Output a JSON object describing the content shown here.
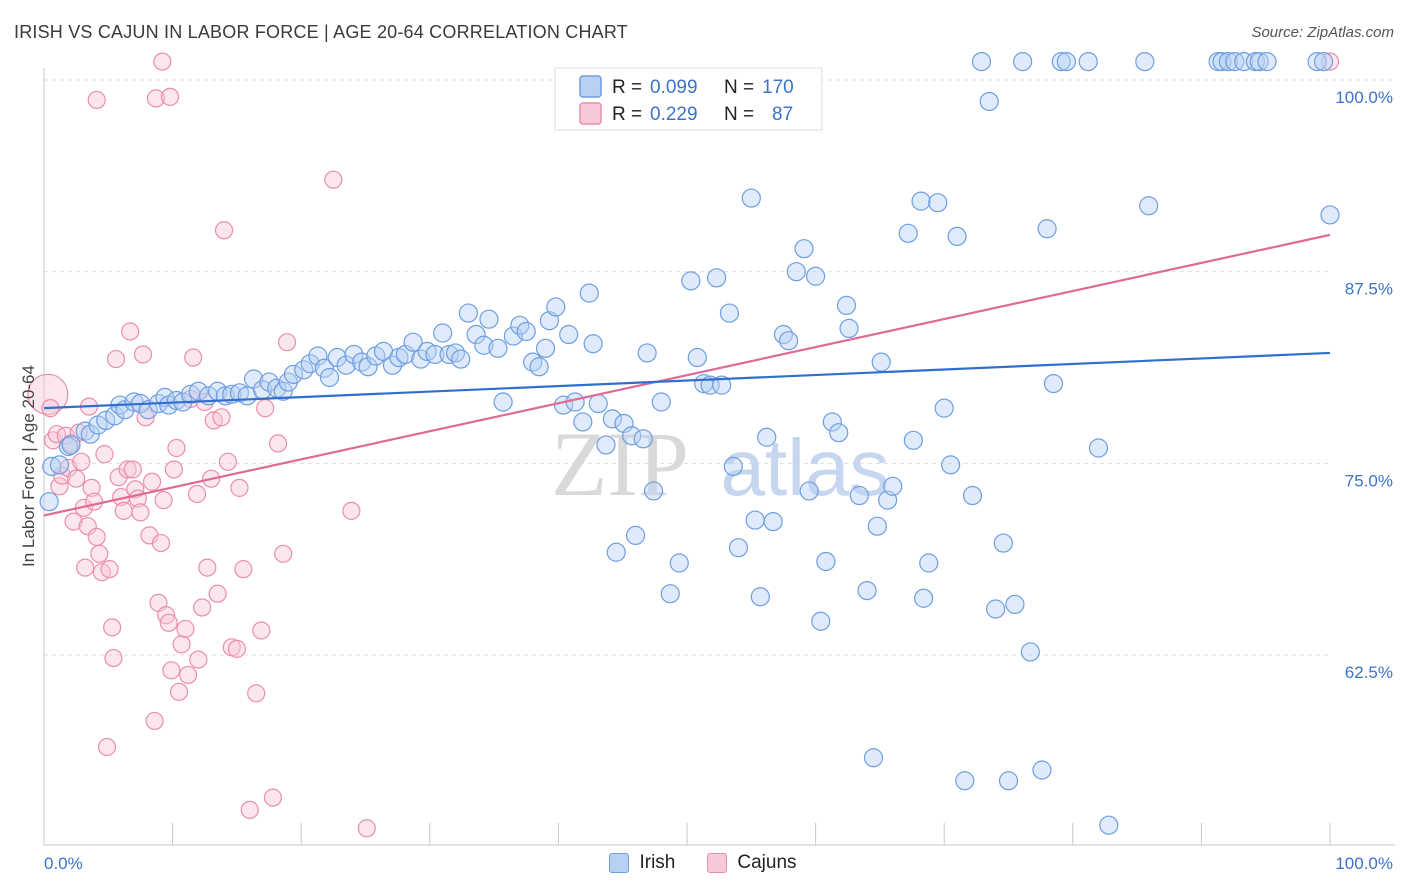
{
  "header": {
    "title": "IRISH VS CAJUN IN LABOR FORCE | AGE 20-64 CORRELATION CHART",
    "source": "Source: ZipAtlas.com"
  },
  "watermark": {
    "zip": "ZIP",
    "atlas": "atlas"
  },
  "colors": {
    "irish_fill": "#b8d1f3",
    "irish_stroke": "#6f9ee0",
    "irish_line": "#2f6fce",
    "cajun_fill": "#f7c8d6",
    "cajun_stroke": "#ea8fab",
    "cajun_line": "#e06a96",
    "tick": "#3b73c9",
    "grid": "#dedede"
  },
  "legend": {
    "irish": {
      "r_label": "R =",
      "r_value": "0.099",
      "n_label": "N =",
      "n_value": "170"
    },
    "cajun": {
      "r_label": "R =",
      "r_value": "0.229",
      "n_label": "N =",
      "n_value": "87"
    }
  },
  "bottom_legend": {
    "irish": "Irish",
    "cajun": "Cajuns"
  },
  "chart_data": {
    "type": "scatter",
    "title": "IRISH VS CAJUN IN LABOR FORCE | AGE 20-64 CORRELATION CHART",
    "xlabel": "",
    "ylabel": "In Labor Force | Age 20-64",
    "xlim": [
      0,
      100
    ],
    "ylim": [
      50.0,
      101.5
    ],
    "x_tick_labels": [
      "0.0%",
      "100.0%"
    ],
    "y_ticks": [
      62.5,
      75.0,
      87.5,
      100.0
    ],
    "y_tick_labels": [
      "62.5%",
      "75.0%",
      "87.5%",
      "100.0%"
    ],
    "grid": true,
    "series": [
      {
        "name": "Irish",
        "r": 0.099,
        "n": 170,
        "trend": {
          "x": [
            0,
            100
          ],
          "y": [
            78.6,
            82.2
          ]
        },
        "points": [
          [
            0.4,
            72.5
          ],
          [
            0.6,
            74.8
          ],
          [
            1.2,
            74.9
          ],
          [
            1.9,
            76.1
          ],
          [
            2.1,
            76.2
          ],
          [
            3.2,
            77.1
          ],
          [
            3.6,
            76.9
          ],
          [
            4.2,
            77.5
          ],
          [
            4.8,
            77.8
          ],
          [
            5.5,
            78.1
          ],
          [
            5.9,
            78.8
          ],
          [
            6.3,
            78.5
          ],
          [
            7.0,
            79.0
          ],
          [
            7.5,
            78.9
          ],
          [
            8.1,
            78.5
          ],
          [
            8.9,
            78.9
          ],
          [
            9.4,
            79.3
          ],
          [
            9.7,
            78.8
          ],
          [
            10.3,
            79.1
          ],
          [
            10.8,
            79.0
          ],
          [
            11.4,
            79.5
          ],
          [
            12.0,
            79.7
          ],
          [
            12.8,
            79.4
          ],
          [
            13.5,
            79.7
          ],
          [
            14.1,
            79.4
          ],
          [
            14.6,
            79.5
          ],
          [
            15.2,
            79.6
          ],
          [
            15.8,
            79.4
          ],
          [
            16.3,
            80.5
          ],
          [
            17.0,
            79.8
          ],
          [
            17.5,
            80.3
          ],
          [
            18.1,
            79.9
          ],
          [
            18.6,
            79.7
          ],
          [
            19.0,
            80.3
          ],
          [
            19.4,
            80.8
          ],
          [
            20.2,
            81.1
          ],
          [
            20.7,
            81.5
          ],
          [
            21.3,
            82.0
          ],
          [
            21.8,
            81.2
          ],
          [
            22.2,
            80.6
          ],
          [
            22.8,
            81.9
          ],
          [
            23.5,
            81.4
          ],
          [
            24.1,
            82.1
          ],
          [
            24.7,
            81.6
          ],
          [
            25.2,
            81.3
          ],
          [
            25.8,
            82.0
          ],
          [
            26.4,
            82.3
          ],
          [
            27.1,
            81.4
          ],
          [
            27.6,
            81.9
          ],
          [
            28.1,
            82.1
          ],
          [
            28.7,
            82.9
          ],
          [
            29.3,
            81.8
          ],
          [
            29.8,
            82.3
          ],
          [
            30.4,
            82.1
          ],
          [
            31.0,
            83.5
          ],
          [
            31.5,
            82.1
          ],
          [
            32.0,
            82.2
          ],
          [
            32.4,
            81.8
          ],
          [
            33.0,
            84.8
          ],
          [
            33.6,
            83.4
          ],
          [
            34.2,
            82.7
          ],
          [
            34.6,
            84.4
          ],
          [
            35.3,
            82.5
          ],
          [
            35.7,
            79.0
          ],
          [
            36.5,
            83.3
          ],
          [
            37.0,
            84.0
          ],
          [
            37.5,
            83.6
          ],
          [
            38.0,
            81.6
          ],
          [
            38.5,
            81.3
          ],
          [
            39.0,
            82.5
          ],
          [
            39.3,
            84.3
          ],
          [
            39.8,
            85.2
          ],
          [
            40.4,
            78.8
          ],
          [
            40.8,
            83.4
          ],
          [
            41.3,
            79.0
          ],
          [
            41.9,
            77.7
          ],
          [
            42.4,
            86.1
          ],
          [
            42.7,
            82.8
          ],
          [
            43.1,
            78.9
          ],
          [
            43.7,
            76.2
          ],
          [
            44.2,
            77.9
          ],
          [
            44.5,
            69.2
          ],
          [
            45.1,
            77.6
          ],
          [
            45.7,
            76.8
          ],
          [
            46.0,
            70.3
          ],
          [
            46.6,
            76.6
          ],
          [
            46.9,
            82.2
          ],
          [
            47.4,
            73.2
          ],
          [
            48.0,
            79.0
          ],
          [
            48.7,
            66.5
          ],
          [
            49.4,
            68.5
          ],
          [
            50.3,
            86.9
          ],
          [
            50.8,
            81.9
          ],
          [
            51.3,
            80.2
          ],
          [
            51.8,
            80.1
          ],
          [
            52.3,
            87.1
          ],
          [
            52.7,
            80.1
          ],
          [
            53.3,
            84.8
          ],
          [
            53.6,
            74.8
          ],
          [
            54.0,
            69.5
          ],
          [
            55.0,
            92.3
          ],
          [
            55.3,
            71.3
          ],
          [
            55.7,
            66.3
          ],
          [
            56.2,
            76.7
          ],
          [
            56.7,
            71.2
          ],
          [
            57.5,
            83.4
          ],
          [
            57.9,
            83.0
          ],
          [
            58.5,
            87.5
          ],
          [
            59.1,
            89.0
          ],
          [
            59.5,
            73.2
          ],
          [
            60.0,
            87.2
          ],
          [
            60.4,
            64.7
          ],
          [
            60.8,
            68.6
          ],
          [
            61.3,
            77.7
          ],
          [
            61.8,
            77.0
          ],
          [
            62.4,
            85.3
          ],
          [
            62.6,
            83.8
          ],
          [
            63.4,
            72.9
          ],
          [
            64.0,
            66.7
          ],
          [
            64.8,
            70.9
          ],
          [
            64.5,
            55.8
          ],
          [
            65.1,
            81.6
          ],
          [
            65.6,
            72.6
          ],
          [
            66.0,
            73.5
          ],
          [
            67.2,
            90.0
          ],
          [
            67.6,
            76.5
          ],
          [
            68.4,
            66.2
          ],
          [
            68.2,
            92.1
          ],
          [
            68.8,
            68.5
          ],
          [
            69.5,
            92.0
          ],
          [
            70.0,
            78.6
          ],
          [
            70.5,
            74.9
          ],
          [
            71.0,
            89.8
          ],
          [
            71.6,
            54.3
          ],
          [
            72.2,
            72.9
          ],
          [
            72.9,
            101.2
          ],
          [
            73.5,
            98.6
          ],
          [
            74.0,
            65.5
          ],
          [
            74.6,
            69.8
          ],
          [
            75.0,
            54.3
          ],
          [
            75.5,
            65.8
          ],
          [
            76.1,
            101.2
          ],
          [
            76.7,
            62.7
          ],
          [
            77.6,
            55.0
          ],
          [
            78.0,
            90.3
          ],
          [
            78.5,
            80.2
          ],
          [
            79.1,
            101.2
          ],
          [
            79.5,
            101.2
          ],
          [
            81.2,
            101.2
          ],
          [
            82.0,
            76.0
          ],
          [
            82.8,
            51.4
          ],
          [
            85.6,
            101.2
          ],
          [
            85.9,
            91.8
          ],
          [
            91.3,
            101.2
          ],
          [
            91.6,
            101.2
          ],
          [
            92.1,
            101.2
          ],
          [
            92.6,
            101.2
          ],
          [
            93.3,
            101.2
          ],
          [
            94.2,
            101.2
          ],
          [
            94.5,
            101.2
          ],
          [
            95.1,
            101.2
          ],
          [
            99.0,
            101.2
          ],
          [
            99.5,
            101.2
          ],
          [
            100.0,
            91.2
          ]
        ]
      },
      {
        "name": "Cajuns",
        "r": 0.229,
        "n": 87,
        "trend": {
          "x": [
            0,
            100
          ],
          "y": [
            71.6,
            89.9
          ]
        },
        "points": [
          [
            0.3,
            79.5
          ],
          [
            0.5,
            78.6
          ],
          [
            0.7,
            76.5
          ],
          [
            1.0,
            76.9
          ],
          [
            1.2,
            73.5
          ],
          [
            1.4,
            74.2
          ],
          [
            1.7,
            76.8
          ],
          [
            1.9,
            74.7
          ],
          [
            2.1,
            76.3
          ],
          [
            2.3,
            71.2
          ],
          [
            2.5,
            74.0
          ],
          [
            2.7,
            77.0
          ],
          [
            2.9,
            75.1
          ],
          [
            3.1,
            72.1
          ],
          [
            3.2,
            68.2
          ],
          [
            3.4,
            70.9
          ],
          [
            3.5,
            78.7
          ],
          [
            3.7,
            73.4
          ],
          [
            3.9,
            72.5
          ],
          [
            4.1,
            70.2
          ],
          [
            4.3,
            69.1
          ],
          [
            4.5,
            67.9
          ],
          [
            4.7,
            75.6
          ],
          [
            4.9,
            56.5
          ],
          [
            5.1,
            68.1
          ],
          [
            5.3,
            64.3
          ],
          [
            5.4,
            62.3
          ],
          [
            5.6,
            81.8
          ],
          [
            5.8,
            74.1
          ],
          [
            6.0,
            72.8
          ],
          [
            6.2,
            71.9
          ],
          [
            6.5,
            74.6
          ],
          [
            6.7,
            83.6
          ],
          [
            6.9,
            74.6
          ],
          [
            7.1,
            73.3
          ],
          [
            7.3,
            72.7
          ],
          [
            7.5,
            71.8
          ],
          [
            7.7,
            82.1
          ],
          [
            7.9,
            78.0
          ],
          [
            8.2,
            70.3
          ],
          [
            8.4,
            73.8
          ],
          [
            8.6,
            58.2
          ],
          [
            8.9,
            65.9
          ],
          [
            9.1,
            69.8
          ],
          [
            9.3,
            72.6
          ],
          [
            9.5,
            65.1
          ],
          [
            9.7,
            64.6
          ],
          [
            9.9,
            61.5
          ],
          [
            10.1,
            74.6
          ],
          [
            10.3,
            76.0
          ],
          [
            10.5,
            60.1
          ],
          [
            10.7,
            63.2
          ],
          [
            11.0,
            64.2
          ],
          [
            11.2,
            61.2
          ],
          [
            11.4,
            79.2
          ],
          [
            11.6,
            81.9
          ],
          [
            11.9,
            73.0
          ],
          [
            12.0,
            62.2
          ],
          [
            12.3,
            65.6
          ],
          [
            12.5,
            79.0
          ],
          [
            12.7,
            68.2
          ],
          [
            13.0,
            74.0
          ],
          [
            13.2,
            77.8
          ],
          [
            13.5,
            66.5
          ],
          [
            13.8,
            78.0
          ],
          [
            14.0,
            90.2
          ],
          [
            14.3,
            75.1
          ],
          [
            14.6,
            63.0
          ],
          [
            15.0,
            62.9
          ],
          [
            15.2,
            73.4
          ],
          [
            15.5,
            68.1
          ],
          [
            16.0,
            52.4
          ],
          [
            16.5,
            60.0
          ],
          [
            16.9,
            64.1
          ],
          [
            17.2,
            78.6
          ],
          [
            17.8,
            53.2
          ],
          [
            18.2,
            76.3
          ],
          [
            18.6,
            69.1
          ],
          [
            18.9,
            82.9
          ],
          [
            8.7,
            98.8
          ],
          [
            9.2,
            101.2
          ],
          [
            22.5,
            93.5
          ],
          [
            23.9,
            71.9
          ],
          [
            25.1,
            51.2
          ],
          [
            4.1,
            98.7
          ],
          [
            9.8,
            98.9
          ],
          [
            100.0,
            101.2
          ]
        ]
      }
    ]
  }
}
